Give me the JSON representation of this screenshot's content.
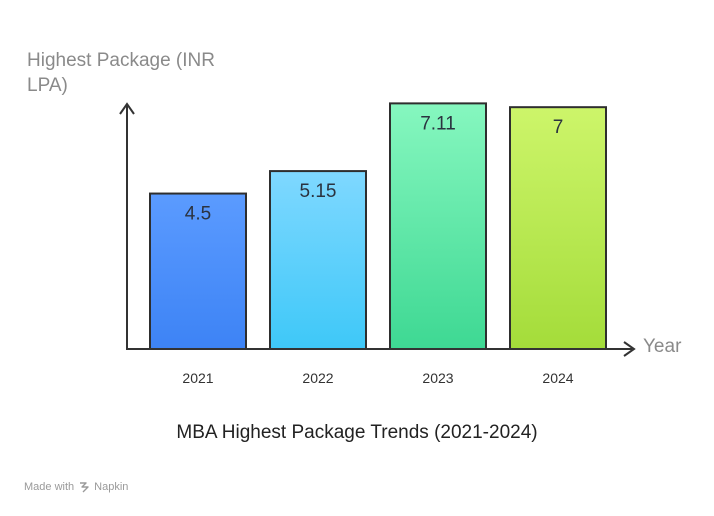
{
  "chart_data": {
    "type": "bar",
    "title": "MBA Highest Package Trends (2021-2024)",
    "xlabel": "Year",
    "ylabel": "Highest Package (INR LPA)",
    "categories": [
      "2021",
      "2022",
      "2023",
      "2024"
    ],
    "values": [
      4.5,
      5.15,
      7.11,
      7
    ],
    "value_labels": [
      "4.5",
      "5.15",
      "7.11",
      "7"
    ],
    "ylim": [
      0,
      7.7
    ],
    "grid": false,
    "colors": [
      {
        "top": "#5b9bff",
        "bottom": "#3d83f5"
      },
      {
        "top": "#7fd8ff",
        "bottom": "#3ec8f8"
      },
      {
        "top": "#86f7bf",
        "bottom": "#3ed893"
      },
      {
        "top": "#cdf56a",
        "bottom": "#a4dc3a"
      }
    ]
  },
  "footer": {
    "made_with": "Made with",
    "brand": "Napkin",
    "brand_icon": "napkin-logo-icon"
  }
}
